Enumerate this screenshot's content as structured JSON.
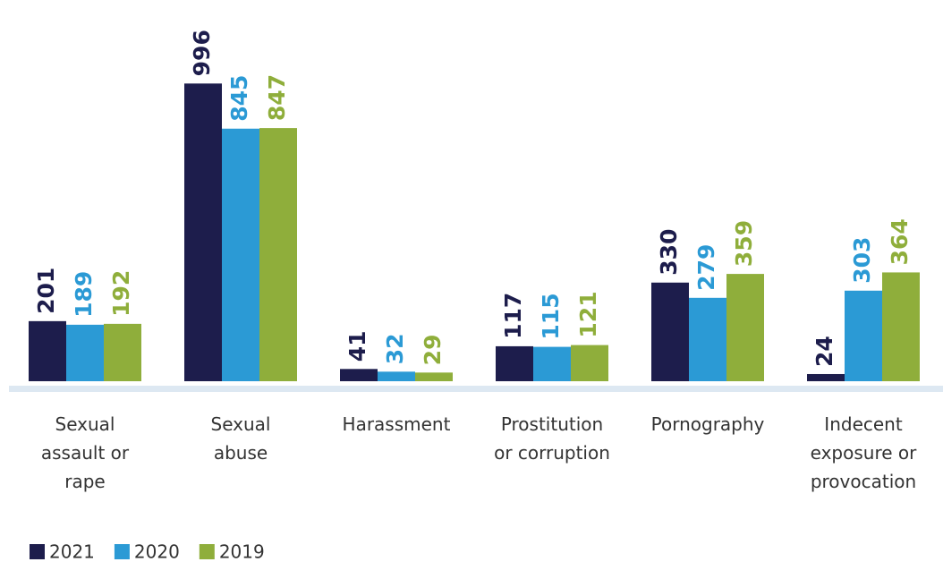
{
  "chart_data": {
    "type": "bar",
    "categories": [
      "Sexual assault or rape",
      "Sexual abuse",
      "Harassment",
      "Prostitution or corruption",
      "Pornography",
      "Indecent exposure or provocation"
    ],
    "series": [
      {
        "name": "2021",
        "color": "#1d1d4c",
        "values": [
          201,
          996,
          41,
          117,
          330,
          24
        ]
      },
      {
        "name": "2020",
        "color": "#2b9ad5",
        "values": [
          189,
          845,
          32,
          115,
          279,
          303
        ]
      },
      {
        "name": "2019",
        "color": "#8fae3b",
        "values": [
          192,
          847,
          29,
          121,
          359,
          364
        ]
      }
    ],
    "ylim": [
      0,
      1000
    ],
    "legend": "bottom-left"
  }
}
